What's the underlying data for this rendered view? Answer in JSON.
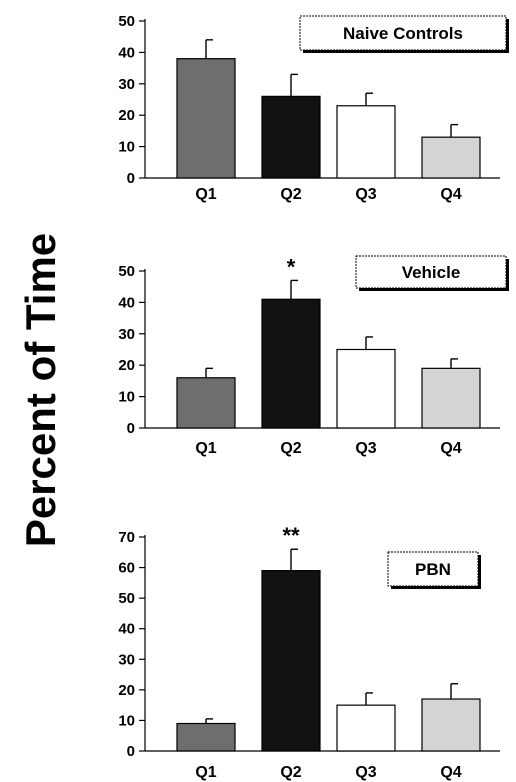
{
  "figure": {
    "ylabel": "Percent of Time"
  },
  "colors": {
    "Q1": "#6e6e6e",
    "Q2": "#111111",
    "Q3": "#ffffff",
    "Q4": "#d4d4d4",
    "axis": "#000000"
  },
  "chart_data": [
    {
      "type": "bar",
      "title": "Naive Controls",
      "categories": [
        "Q1",
        "Q2",
        "Q3",
        "Q4"
      ],
      "values": [
        38,
        26,
        23,
        13
      ],
      "errors": [
        6,
        7,
        4,
        4
      ],
      "ylim": [
        0,
        50
      ],
      "yticks": [
        0,
        10,
        20,
        30,
        40,
        50
      ],
      "annotations": [
        "",
        "",
        "",
        ""
      ],
      "grid": false
    },
    {
      "type": "bar",
      "title": "Vehicle",
      "categories": [
        "Q1",
        "Q2",
        "Q3",
        "Q4"
      ],
      "values": [
        16,
        41,
        25,
        19
      ],
      "errors": [
        3,
        6,
        4,
        3
      ],
      "ylim": [
        0,
        50
      ],
      "yticks": [
        0,
        10,
        20,
        30,
        40,
        50
      ],
      "annotations": [
        "",
        "*",
        "",
        ""
      ],
      "grid": false
    },
    {
      "type": "bar",
      "title": "PBN",
      "categories": [
        "Q1",
        "Q2",
        "Q3",
        "Q4"
      ],
      "values": [
        9,
        59,
        15,
        17
      ],
      "errors": [
        1.5,
        7,
        4,
        5
      ],
      "ylim": [
        0,
        70
      ],
      "yticks": [
        0,
        10,
        20,
        30,
        40,
        50,
        60,
        70
      ],
      "annotations": [
        "",
        "**",
        "",
        ""
      ],
      "grid": false
    }
  ]
}
